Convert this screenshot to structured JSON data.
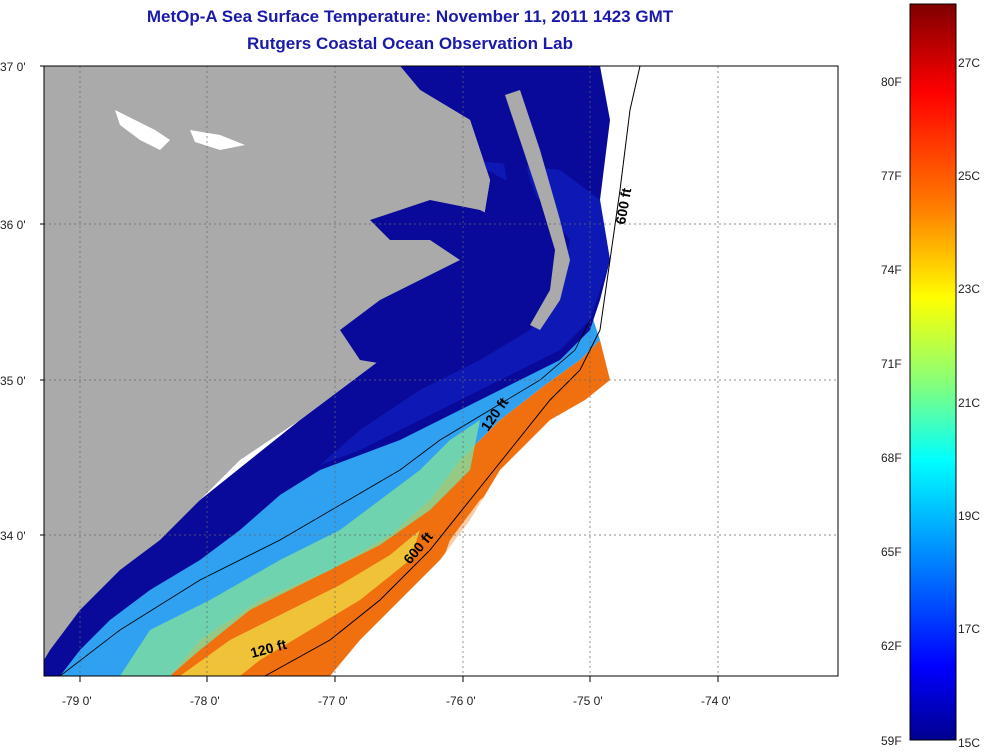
{
  "title": "MetOp-A Sea Surface Temperature:  November 11, 2011 1423 GMT",
  "subtitle": "Rutgers Coastal Ocean Observation Lab",
  "lat_labels": [
    "37 0'",
    "36 0'",
    "35 0'",
    "34 0'"
  ],
  "lon_labels": [
    "-79 0'",
    "-78 0'",
    "-77 0'",
    "-76 0'",
    "-75 0'",
    "-74 0'"
  ],
  "contour_labels": [
    "600 ft",
    "120 ft",
    "600 ft",
    "120 ft"
  ],
  "colorbar": {
    "fahrenheit": [
      "80F",
      "77F",
      "74F",
      "71F",
      "68F",
      "65F",
      "62F",
      "59F"
    ],
    "celsius": [
      "27C",
      "25C",
      "23C",
      "21C",
      "19C",
      "17C",
      "15C"
    ],
    "colors": [
      "#7f0000",
      "#ff0000",
      "#ff8000",
      "#ffff00",
      "#80ff80",
      "#00ffff",
      "#0080ff",
      "#0000ff",
      "#00008f"
    ]
  },
  "colors": {
    "land": "#aaaaaa",
    "title": "#1a1aa8",
    "cold_water": "#0a0a9a"
  }
}
